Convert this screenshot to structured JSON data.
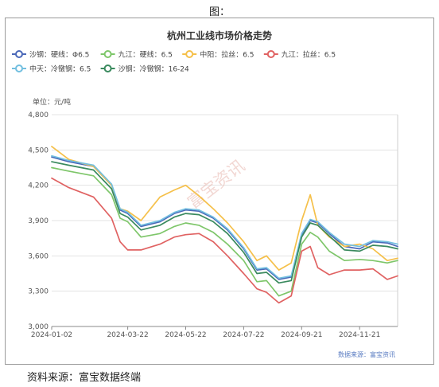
{
  "figure_label": "图：",
  "source_note": "资料来源：富宝数据终端",
  "watermark": "富宝资讯",
  "chart_data": {
    "type": "line",
    "title": "杭州工业线市场价格走势",
    "ylabel": "单位：元/吨",
    "xlabel": "",
    "data_source": "数据来源：富宝资讯",
    "ylim": [
      3000,
      4800
    ],
    "yticks": [
      3000,
      3300,
      3600,
      3900,
      4200,
      4500,
      4800
    ],
    "ytick_labels": [
      "3,000",
      "3,300",
      "3,600",
      "3,900",
      "4,200",
      "4,500",
      "4,800"
    ],
    "x_tick_labels": [
      "2024-01-02",
      "2024-03-22",
      "2024-05-22",
      "2024-07-22",
      "2024-09-21",
      "2024-11-21"
    ],
    "x_tick_dates": [
      "2024-01-02",
      "2024-03-22",
      "2024-05-22",
      "2024-07-22",
      "2024-09-21",
      "2024-11-21"
    ],
    "x_range": [
      "2024-01-02",
      "2024-12-31"
    ],
    "grid": "horizontal",
    "legend_position": "top",
    "series": [
      {
        "name": "沙钢：硬线：Φ6.5",
        "color": "#4a68b8",
        "points": [
          [
            "2024-01-02",
            4440
          ],
          [
            "2024-01-20",
            4400
          ],
          [
            "2024-02-15",
            4360
          ],
          [
            "2024-03-05",
            4200
          ],
          [
            "2024-03-14",
            3990
          ],
          [
            "2024-03-22",
            3960
          ],
          [
            "2024-04-05",
            3850
          ],
          [
            "2024-04-25",
            3890
          ],
          [
            "2024-05-10",
            3960
          ],
          [
            "2024-05-22",
            3990
          ],
          [
            "2024-06-05",
            3980
          ],
          [
            "2024-06-20",
            3920
          ],
          [
            "2024-07-05",
            3820
          ],
          [
            "2024-07-22",
            3660
          ],
          [
            "2024-08-05",
            3480
          ],
          [
            "2024-08-15",
            3490
          ],
          [
            "2024-08-28",
            3400
          ],
          [
            "2024-09-10",
            3420
          ],
          [
            "2024-09-21",
            3780
          ],
          [
            "2024-09-30",
            3900
          ],
          [
            "2024-10-08",
            3880
          ],
          [
            "2024-10-20",
            3790
          ],
          [
            "2024-11-05",
            3680
          ],
          [
            "2024-11-21",
            3660
          ],
          [
            "2024-12-05",
            3720
          ],
          [
            "2024-12-20",
            3710
          ],
          [
            "2024-12-31",
            3680
          ]
        ]
      },
      {
        "name": "九江：硬线：6.5",
        "color": "#7ec66a",
        "points": [
          [
            "2024-01-02",
            4350
          ],
          [
            "2024-01-20",
            4320
          ],
          [
            "2024-02-15",
            4280
          ],
          [
            "2024-03-05",
            4120
          ],
          [
            "2024-03-14",
            3920
          ],
          [
            "2024-03-22",
            3890
          ],
          [
            "2024-04-05",
            3760
          ],
          [
            "2024-04-25",
            3790
          ],
          [
            "2024-05-10",
            3850
          ],
          [
            "2024-05-22",
            3880
          ],
          [
            "2024-06-05",
            3860
          ],
          [
            "2024-06-20",
            3800
          ],
          [
            "2024-07-05",
            3700
          ],
          [
            "2024-07-22",
            3560
          ],
          [
            "2024-08-05",
            3380
          ],
          [
            "2024-08-15",
            3390
          ],
          [
            "2024-08-28",
            3260
          ],
          [
            "2024-09-10",
            3300
          ],
          [
            "2024-09-21",
            3700
          ],
          [
            "2024-09-30",
            3800
          ],
          [
            "2024-10-08",
            3760
          ],
          [
            "2024-10-20",
            3640
          ],
          [
            "2024-11-05",
            3560
          ],
          [
            "2024-11-21",
            3570
          ],
          [
            "2024-12-05",
            3560
          ],
          [
            "2024-12-20",
            3540
          ],
          [
            "2024-12-31",
            3560
          ]
        ]
      },
      {
        "name": "中阳：拉丝：6.5",
        "color": "#f5c04a",
        "points": [
          [
            "2024-01-02",
            4530
          ],
          [
            "2024-01-20",
            4420
          ],
          [
            "2024-02-15",
            4360
          ],
          [
            "2024-03-05",
            4200
          ],
          [
            "2024-03-14",
            4000
          ],
          [
            "2024-03-22",
            3980
          ],
          [
            "2024-04-05",
            3900
          ],
          [
            "2024-04-25",
            4100
          ],
          [
            "2024-05-10",
            4160
          ],
          [
            "2024-05-22",
            4200
          ],
          [
            "2024-06-05",
            4110
          ],
          [
            "2024-06-20",
            4000
          ],
          [
            "2024-07-05",
            3880
          ],
          [
            "2024-07-22",
            3720
          ],
          [
            "2024-08-05",
            3560
          ],
          [
            "2024-08-15",
            3600
          ],
          [
            "2024-08-28",
            3480
          ],
          [
            "2024-09-10",
            3540
          ],
          [
            "2024-09-21",
            3900
          ],
          [
            "2024-09-30",
            4120
          ],
          [
            "2024-10-08",
            3860
          ],
          [
            "2024-10-20",
            3760
          ],
          [
            "2024-11-05",
            3680
          ],
          [
            "2024-11-21",
            3700
          ],
          [
            "2024-12-05",
            3660
          ],
          [
            "2024-12-20",
            3560
          ],
          [
            "2024-12-31",
            3580
          ]
        ]
      },
      {
        "name": "九江：拉丝：6.5",
        "color": "#e06262",
        "points": [
          [
            "2024-01-02",
            4260
          ],
          [
            "2024-01-20",
            4180
          ],
          [
            "2024-02-15",
            4100
          ],
          [
            "2024-03-05",
            3920
          ],
          [
            "2024-03-14",
            3720
          ],
          [
            "2024-03-22",
            3650
          ],
          [
            "2024-04-05",
            3650
          ],
          [
            "2024-04-25",
            3700
          ],
          [
            "2024-05-10",
            3760
          ],
          [
            "2024-05-22",
            3780
          ],
          [
            "2024-06-05",
            3790
          ],
          [
            "2024-06-20",
            3720
          ],
          [
            "2024-07-05",
            3600
          ],
          [
            "2024-07-22",
            3450
          ],
          [
            "2024-08-05",
            3320
          ],
          [
            "2024-08-15",
            3290
          ],
          [
            "2024-08-28",
            3200
          ],
          [
            "2024-09-10",
            3260
          ],
          [
            "2024-09-21",
            3640
          ],
          [
            "2024-09-30",
            3680
          ],
          [
            "2024-10-08",
            3500
          ],
          [
            "2024-10-20",
            3440
          ],
          [
            "2024-11-05",
            3480
          ],
          [
            "2024-11-21",
            3480
          ],
          [
            "2024-12-05",
            3490
          ],
          [
            "2024-12-20",
            3400
          ],
          [
            "2024-12-31",
            3430
          ]
        ]
      },
      {
        "name": "中天：冷镦钢：6.5",
        "color": "#72bfe0",
        "points": [
          [
            "2024-01-02",
            4450
          ],
          [
            "2024-01-20",
            4410
          ],
          [
            "2024-02-15",
            4370
          ],
          [
            "2024-03-05",
            4210
          ],
          [
            "2024-03-14",
            4000
          ],
          [
            "2024-03-22",
            3970
          ],
          [
            "2024-04-05",
            3860
          ],
          [
            "2024-04-25",
            3900
          ],
          [
            "2024-05-10",
            3970
          ],
          [
            "2024-05-22",
            4000
          ],
          [
            "2024-06-05",
            3990
          ],
          [
            "2024-06-20",
            3930
          ],
          [
            "2024-07-05",
            3830
          ],
          [
            "2024-07-22",
            3670
          ],
          [
            "2024-08-05",
            3490
          ],
          [
            "2024-08-15",
            3500
          ],
          [
            "2024-08-28",
            3410
          ],
          [
            "2024-09-10",
            3430
          ],
          [
            "2024-09-21",
            3790
          ],
          [
            "2024-09-30",
            3910
          ],
          [
            "2024-10-08",
            3890
          ],
          [
            "2024-10-20",
            3800
          ],
          [
            "2024-11-05",
            3700
          ],
          [
            "2024-11-21",
            3680
          ],
          [
            "2024-12-05",
            3730
          ],
          [
            "2024-12-20",
            3720
          ],
          [
            "2024-12-31",
            3700
          ]
        ]
      },
      {
        "name": "沙钢：冷镦钢：16-24",
        "color": "#3a8a5e",
        "points": [
          [
            "2024-01-02",
            4400
          ],
          [
            "2024-01-20",
            4370
          ],
          [
            "2024-02-15",
            4330
          ],
          [
            "2024-03-05",
            4170
          ],
          [
            "2024-03-14",
            3960
          ],
          [
            "2024-03-22",
            3930
          ],
          [
            "2024-04-05",
            3820
          ],
          [
            "2024-04-25",
            3860
          ],
          [
            "2024-05-10",
            3930
          ],
          [
            "2024-05-22",
            3960
          ],
          [
            "2024-06-05",
            3950
          ],
          [
            "2024-06-20",
            3890
          ],
          [
            "2024-07-05",
            3790
          ],
          [
            "2024-07-22",
            3630
          ],
          [
            "2024-08-05",
            3450
          ],
          [
            "2024-08-15",
            3460
          ],
          [
            "2024-08-28",
            3370
          ],
          [
            "2024-09-10",
            3390
          ],
          [
            "2024-09-21",
            3760
          ],
          [
            "2024-09-30",
            3880
          ],
          [
            "2024-10-08",
            3860
          ],
          [
            "2024-10-20",
            3770
          ],
          [
            "2024-11-05",
            3650
          ],
          [
            "2024-11-21",
            3640
          ],
          [
            "2024-12-05",
            3690
          ],
          [
            "2024-12-20",
            3680
          ],
          [
            "2024-12-31",
            3660
          ]
        ]
      }
    ]
  }
}
